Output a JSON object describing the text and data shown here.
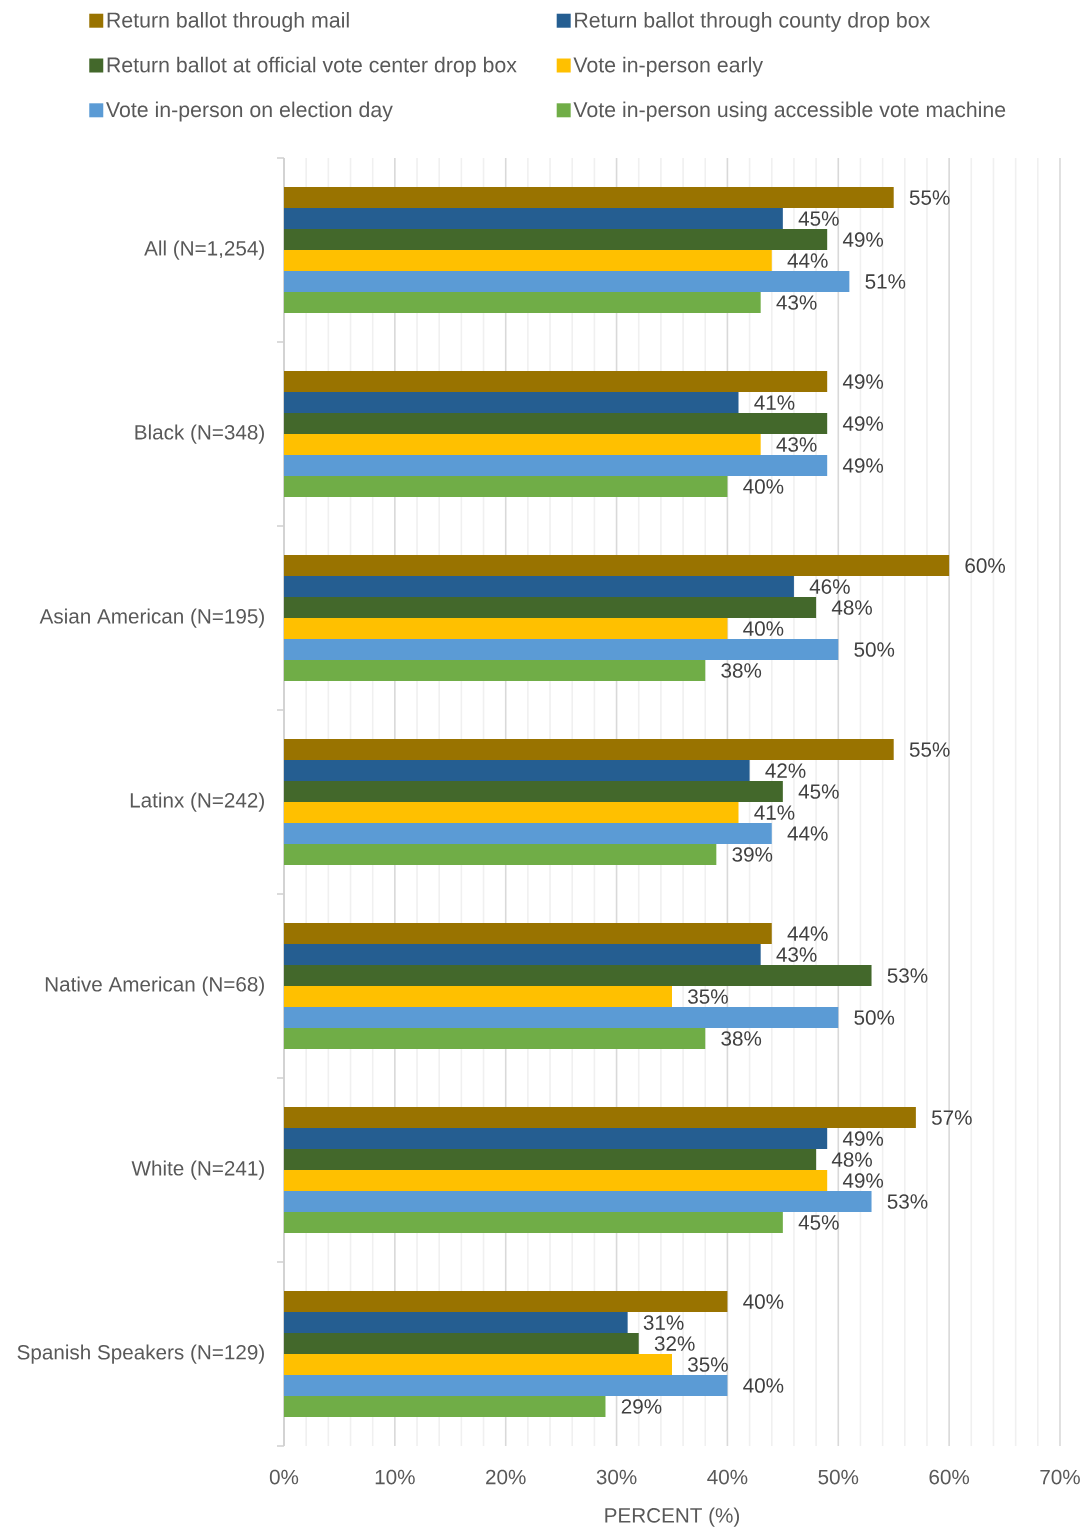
{
  "chart_data": {
    "type": "bar",
    "orientation": "horizontal",
    "xlabel": "PERCENT (%)",
    "categories": [
      "All (N=1,254)",
      "Black (N=348)",
      "Asian American (N=195)",
      "Latinx (N=242)",
      "Native American (N=68)",
      "White (N=241)",
      "Spanish Speakers (N=129)"
    ],
    "series": [
      {
        "name": "Return ballot through mail",
        "color": "#997300",
        "values": [
          55,
          49,
          60,
          55,
          44,
          57,
          40
        ],
        "value_labels": [
          "55%",
          "49%",
          "60%",
          "55%",
          "44%",
          "57%",
          "40%"
        ]
      },
      {
        "name": "Return ballot through county drop box",
        "color": "#255e91",
        "values": [
          45,
          41,
          46,
          42,
          43,
          49,
          31
        ],
        "value_labels": [
          "45%",
          "41%",
          "46%",
          "42%",
          "43%",
          "49%",
          "31%"
        ]
      },
      {
        "name": "Return ballot at official vote center drop box",
        "color": "#43682b",
        "values": [
          49,
          49,
          48,
          45,
          53,
          48,
          32
        ],
        "value_labels": [
          "49%",
          "49%",
          "48%",
          "45%",
          "53%",
          "48%",
          "32%"
        ]
      },
      {
        "name": "Vote in-person early",
        "color": "#ffc000",
        "values": [
          44,
          43,
          40,
          41,
          35,
          49,
          35
        ],
        "value_labels": [
          "44%",
          "43%",
          "40%",
          "41%",
          "35%",
          "49%",
          "35%"
        ]
      },
      {
        "name": "Vote in-person on election day",
        "color": "#5b9bd5",
        "values": [
          51,
          49,
          50,
          44,
          50,
          53,
          40
        ],
        "value_labels": [
          "51%",
          "49%",
          "50%",
          "44%",
          "50%",
          "53%",
          "40%"
        ]
      },
      {
        "name": "Vote in-person using accessible vote machine",
        "color": "#70ad47",
        "values": [
          43,
          40,
          38,
          39,
          38,
          45,
          29
        ],
        "value_labels": [
          "43%",
          "40%",
          "38%",
          "39%",
          "38%",
          "45%",
          "29%"
        ]
      }
    ],
    "xlim": [
      0,
      70
    ],
    "xticks": [
      {
        "value": 0,
        "label": "0%"
      },
      {
        "value": 2,
        "label": null
      },
      {
        "value": 4,
        "label": null
      },
      {
        "value": 6,
        "label": null
      },
      {
        "value": 8,
        "label": null
      },
      {
        "value": 10,
        "label": "10%"
      },
      {
        "value": 12,
        "label": null
      },
      {
        "value": 14,
        "label": null
      },
      {
        "value": 16,
        "label": null
      },
      {
        "value": 18,
        "label": null
      },
      {
        "value": 20,
        "label": "20%"
      },
      {
        "value": 22,
        "label": null
      },
      {
        "value": 24,
        "label": null
      },
      {
        "value": 26,
        "label": null
      },
      {
        "value": 28,
        "label": null
      },
      {
        "value": 30,
        "label": "30%"
      },
      {
        "value": 32,
        "label": null
      },
      {
        "value": 34,
        "label": null
      },
      {
        "value": 36,
        "label": null
      },
      {
        "value": 38,
        "label": null
      },
      {
        "value": 40,
        "label": "40%"
      },
      {
        "value": 42,
        "label": null
      },
      {
        "value": 44,
        "label": null
      },
      {
        "value": 46,
        "label": null
      },
      {
        "value": 48,
        "label": null
      },
      {
        "value": 50,
        "label": "50%"
      },
      {
        "value": 52,
        "label": null
      },
      {
        "value": 54,
        "label": null
      },
      {
        "value": 56,
        "label": null
      },
      {
        "value": 58,
        "label": null
      },
      {
        "value": 60,
        "label": "60%"
      },
      {
        "value": 62,
        "label": null
      },
      {
        "value": 64,
        "label": null
      },
      {
        "value": 66,
        "label": null
      },
      {
        "value": 68,
        "label": null
      },
      {
        "value": 70,
        "label": "70%"
      }
    ],
    "grid": "x",
    "legend": "top"
  }
}
